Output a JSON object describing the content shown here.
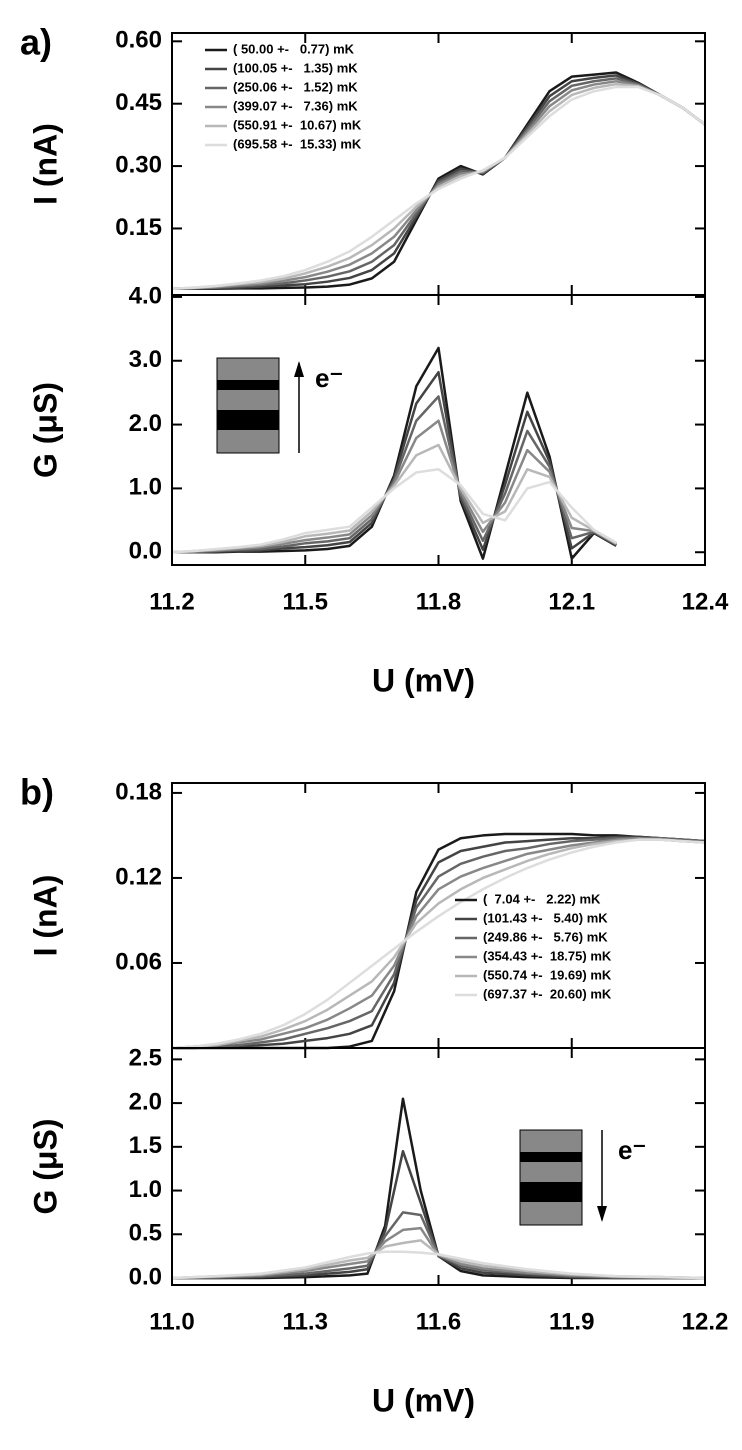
{
  "chart_data": [
    {
      "type": "line",
      "panel_label": "a)",
      "ylabel": "I (nA)",
      "legend": "upper left",
      "x": [
        11.2,
        11.25,
        11.3,
        11.35,
        11.4,
        11.45,
        11.5,
        11.55,
        11.6,
        11.65,
        11.7,
        11.75,
        11.8,
        11.85,
        11.9,
        11.95,
        12.0,
        12.05,
        12.1,
        12.15,
        12.2,
        12.25,
        12.3,
        12.35,
        12.4
      ],
      "xlim": [
        11.2,
        12.4
      ],
      "xticks": [
        11.2,
        11.5,
        11.8,
        12.1,
        12.4
      ],
      "ylim": [
        -0.01,
        0.62
      ],
      "yticks": [
        {
          "value": 0.6,
          "label": "0.60"
        },
        0.45,
        {
          "value": 0.3,
          "label": "0.30"
        },
        0.15
      ],
      "series": [
        {
          "name": "( 50.00 +-   0.77) mK",
          "color": "#1a1a1a",
          "values": [
            0.005,
            0.005,
            0.005,
            0.006,
            0.006,
            0.007,
            0.008,
            0.01,
            0.015,
            0.03,
            0.07,
            0.17,
            0.27,
            0.3,
            0.28,
            0.32,
            0.4,
            0.48,
            0.515,
            0.52,
            0.525,
            0.5,
            0.47,
            0.44,
            0.4
          ]
        },
        {
          "name": "(100.05 +-   1.35) mK",
          "color": "#444444",
          "values": [
            0.005,
            0.006,
            0.006,
            0.008,
            0.01,
            0.013,
            0.016,
            0.022,
            0.031,
            0.05,
            0.09,
            0.178,
            0.265,
            0.294,
            0.282,
            0.32,
            0.394,
            0.468,
            0.504,
            0.512,
            0.518,
            0.498,
            0.47,
            0.44,
            0.4
          ]
        },
        {
          "name": "(250.06 +-   1.52) mK",
          "color": "#666666",
          "values": [
            0.005,
            0.006,
            0.008,
            0.011,
            0.014,
            0.018,
            0.025,
            0.034,
            0.047,
            0.07,
            0.11,
            0.186,
            0.26,
            0.288,
            0.284,
            0.32,
            0.388,
            0.456,
            0.493,
            0.504,
            0.511,
            0.496,
            0.47,
            0.44,
            0.4
          ]
        },
        {
          "name": "(399.07 +-   7.36) mK",
          "color": "#888888",
          "values": [
            0.005,
            0.007,
            0.009,
            0.013,
            0.017,
            0.024,
            0.033,
            0.046,
            0.063,
            0.09,
            0.13,
            0.194,
            0.255,
            0.282,
            0.286,
            0.32,
            0.382,
            0.444,
            0.482,
            0.496,
            0.504,
            0.494,
            0.47,
            0.44,
            0.4
          ]
        },
        {
          "name": "(550.91 +-  10.67) mK",
          "color": "#b8b8b8",
          "values": [
            0.005,
            0.007,
            0.011,
            0.016,
            0.021,
            0.029,
            0.042,
            0.058,
            0.079,
            0.11,
            0.15,
            0.202,
            0.25,
            0.276,
            0.288,
            0.32,
            0.376,
            0.432,
            0.471,
            0.488,
            0.497,
            0.492,
            0.47,
            0.44,
            0.4
          ]
        },
        {
          "name": "(695.58 +-  15.33) mK",
          "color": "#dddddd",
          "values": [
            0.005,
            0.008,
            0.012,
            0.018,
            0.025,
            0.035,
            0.05,
            0.07,
            0.095,
            0.13,
            0.17,
            0.21,
            0.245,
            0.27,
            0.29,
            0.32,
            0.37,
            0.42,
            0.46,
            0.48,
            0.49,
            0.49,
            0.47,
            0.44,
            0.4
          ]
        }
      ]
    },
    {
      "type": "line",
      "ylabel": "G (μS)",
      "xlabel": "U (mV)",
      "inset_label": "e⁻",
      "x": [
        11.2,
        11.25,
        11.3,
        11.35,
        11.4,
        11.45,
        11.5,
        11.55,
        11.6,
        11.65,
        11.7,
        11.75,
        11.8,
        11.85,
        11.9,
        11.95,
        12.0,
        12.05,
        12.1,
        12.15,
        12.2
      ],
      "xlim": [
        11.2,
        12.4
      ],
      "xticks": [
        11.2,
        11.5,
        11.8,
        12.1,
        12.4
      ],
      "ylim": [
        -0.2,
        4.03
      ],
      "yticks": [
        {
          "value": 4,
          "label": "4.0"
        },
        {
          "value": 3,
          "label": "3.0"
        },
        {
          "value": 2,
          "label": "2.0"
        },
        {
          "value": 1,
          "label": "1.0"
        },
        {
          "value": 0,
          "label": "0.0"
        }
      ],
      "series": [
        {
          "color": "#1a1a1a",
          "values": [
            0,
            0,
            0,
            0.01,
            0.01,
            0.02,
            0.03,
            0.05,
            0.1,
            0.4,
            1.2,
            2.6,
            3.2,
            0.8,
            -0.1,
            1.2,
            2.5,
            1.5,
            -0.1,
            0.3,
            0.1
          ]
        },
        {
          "color": "#444444",
          "values": [
            0,
            0,
            0.01,
            0.02,
            0.03,
            0.06,
            0.08,
            0.11,
            0.16,
            0.46,
            1.16,
            2.33,
            2.82,
            0.85,
            0.04,
            1.06,
            2.2,
            1.42,
            0.06,
            0.31,
            0.11
          ]
        },
        {
          "color": "#666666",
          "values": [
            0,
            0.01,
            0.02,
            0.04,
            0.05,
            0.09,
            0.14,
            0.17,
            0.22,
            0.52,
            1.12,
            2.06,
            2.44,
            0.9,
            0.18,
            0.92,
            1.9,
            1.34,
            0.22,
            0.32,
            0.12
          ]
        },
        {
          "color": "#888888",
          "values": [
            0,
            0.01,
            0.03,
            0.05,
            0.08,
            0.13,
            0.19,
            0.23,
            0.28,
            0.58,
            1.08,
            1.79,
            2.06,
            0.95,
            0.32,
            0.78,
            1.6,
            1.26,
            0.38,
            0.33,
            0.13
          ]
        },
        {
          "color": "#b8b8b8",
          "values": [
            0,
            0.02,
            0.04,
            0.07,
            0.1,
            0.16,
            0.25,
            0.29,
            0.34,
            0.64,
            1.04,
            1.52,
            1.68,
            1.0,
            0.46,
            0.64,
            1.3,
            1.18,
            0.54,
            0.34,
            0.14
          ]
        },
        {
          "color": "#dddddd",
          "values": [
            0,
            0.02,
            0.05,
            0.08,
            0.12,
            0.2,
            0.3,
            0.35,
            0.4,
            0.7,
            1.0,
            1.25,
            1.3,
            1.05,
            0.6,
            0.5,
            1.0,
            1.1,
            0.7,
            0.35,
            0.15
          ]
        }
      ]
    },
    {
      "type": "line",
      "panel_label": "b)",
      "ylabel": "I (nA)",
      "legend": "lower right",
      "x": [
        11.0,
        11.05,
        11.1,
        11.15,
        11.2,
        11.25,
        11.3,
        11.35,
        11.4,
        11.45,
        11.5,
        11.55,
        11.6,
        11.65,
        11.7,
        11.75,
        11.8,
        11.85,
        11.9,
        11.95,
        12.0,
        12.05,
        12.1,
        12.15,
        12.2
      ],
      "xlim": [
        11.0,
        12.2
      ],
      "xticks": [
        {
          "value": 11,
          "label": "11.0"
        },
        11.3,
        11.6,
        11.9,
        12.2
      ],
      "ylim": [
        0,
        0.187
      ],
      "yticks": [
        0.18,
        0.12,
        0.06
      ],
      "series": [
        {
          "name": "(  7.04 +-   2.22) mK",
          "color": "#1a1a1a",
          "values": [
            0,
            0,
            0,
            0,
            0,
            0,
            0,
            0,
            0.001,
            0.005,
            0.04,
            0.11,
            0.14,
            0.148,
            0.15,
            0.151,
            0.151,
            0.151,
            0.151,
            0.15,
            0.15,
            0.149,
            0.148,
            0.147,
            0.146
          ]
        },
        {
          "name": "(101.43 +-   5.40) mK",
          "color": "#444444",
          "values": [
            0,
            0,
            0.001,
            0.001,
            0.002,
            0.003,
            0.005,
            0.007,
            0.01,
            0.016,
            0.046,
            0.104,
            0.131,
            0.139,
            0.142,
            0.145,
            0.146,
            0.147,
            0.148,
            0.148,
            0.149,
            0.149,
            0.148,
            0.147,
            0.146
          ]
        },
        {
          "name": "(249.86 +-   5.76) mK",
          "color": "#666666",
          "values": [
            0,
            0,
            0.001,
            0.002,
            0.004,
            0.006,
            0.01,
            0.014,
            0.019,
            0.026,
            0.052,
            0.099,
            0.121,
            0.13,
            0.135,
            0.139,
            0.141,
            0.144,
            0.146,
            0.147,
            0.148,
            0.148,
            0.148,
            0.147,
            0.146
          ]
        },
        {
          "name": "(354.43 +-  18.75) mK",
          "color": "#888888",
          "values": [
            0,
            0.001,
            0.002,
            0.004,
            0.006,
            0.01,
            0.014,
            0.02,
            0.028,
            0.037,
            0.058,
            0.093,
            0.112,
            0.121,
            0.127,
            0.132,
            0.137,
            0.14,
            0.143,
            0.145,
            0.147,
            0.148,
            0.147,
            0.146,
            0.145
          ]
        },
        {
          "name": "(550.74 +-  19.69) mK",
          "color": "#b8b8b8",
          "values": [
            0,
            0.001,
            0.002,
            0.005,
            0.008,
            0.013,
            0.019,
            0.027,
            0.037,
            0.047,
            0.064,
            0.088,
            0.102,
            0.112,
            0.12,
            0.126,
            0.132,
            0.137,
            0.141,
            0.144,
            0.146,
            0.147,
            0.147,
            0.146,
            0.145
          ]
        },
        {
          "name": "(697.37 +-  20.60) mK",
          "color": "#dddddd",
          "values": [
            0,
            0.001,
            0.003,
            0.006,
            0.01,
            0.016,
            0.024,
            0.034,
            0.046,
            0.058,
            0.07,
            0.082,
            0.093,
            0.103,
            0.112,
            0.12,
            0.127,
            0.133,
            0.138,
            0.142,
            0.145,
            0.147,
            0.147,
            0.146,
            0.145
          ]
        }
      ]
    },
    {
      "type": "line",
      "ylabel": "G (μS)",
      "xlabel": "U (mV)",
      "inset_label": "e⁻",
      "x": [
        11.0,
        11.1,
        11.2,
        11.3,
        11.35,
        11.4,
        11.44,
        11.48,
        11.52,
        11.56,
        11.6,
        11.65,
        11.7,
        11.8,
        11.9,
        12.0,
        12.1,
        12.2
      ],
      "xlim": [
        11.0,
        12.2
      ],
      "xticks": [
        {
          "value": 11,
          "label": "11.0"
        },
        11.3,
        11.6,
        11.9,
        12.2
      ],
      "ylim": [
        -0.08,
        2.63
      ],
      "yticks": [
        2.5,
        {
          "value": 2,
          "label": "2.0"
        },
        1.5,
        {
          "value": 1,
          "label": "1.0"
        },
        0.5,
        {
          "value": 0,
          "label": "0.0"
        }
      ],
      "series": [
        {
          "color": "#1a1a1a",
          "values": [
            0,
            0,
            0,
            0.01,
            0.02,
            0.03,
            0.05,
            0.6,
            2.05,
            1.0,
            0.25,
            0.08,
            0.03,
            0.01,
            0,
            0,
            0,
            0
          ]
        },
        {
          "color": "#444444",
          "values": [
            0,
            0,
            0.01,
            0.03,
            0.05,
            0.07,
            0.1,
            0.54,
            1.45,
            0.86,
            0.25,
            0.11,
            0.06,
            0.03,
            0.01,
            0,
            0,
            0
          ]
        },
        {
          "color": "#666666",
          "values": [
            0,
            0.01,
            0.02,
            0.05,
            0.08,
            0.11,
            0.14,
            0.48,
            0.75,
            0.72,
            0.26,
            0.14,
            0.09,
            0.05,
            0.02,
            0.01,
            0,
            0
          ]
        },
        {
          "color": "#888888",
          "values": [
            0,
            0.01,
            0.03,
            0.08,
            0.12,
            0.16,
            0.19,
            0.42,
            0.55,
            0.57,
            0.26,
            0.16,
            0.11,
            0.06,
            0.03,
            0.01,
            0.01,
            0
          ]
        },
        {
          "color": "#b8b8b8",
          "values": [
            0,
            0.02,
            0.04,
            0.1,
            0.15,
            0.2,
            0.23,
            0.36,
            0.4,
            0.43,
            0.27,
            0.19,
            0.14,
            0.08,
            0.04,
            0.02,
            0.01,
            0
          ]
        },
        {
          "color": "#dddddd",
          "values": [
            0,
            0.02,
            0.05,
            0.12,
            0.18,
            0.24,
            0.28,
            0.3,
            0.3,
            0.29,
            0.27,
            0.22,
            0.17,
            0.1,
            0.05,
            0.02,
            0.01,
            0
          ]
        }
      ]
    }
  ]
}
